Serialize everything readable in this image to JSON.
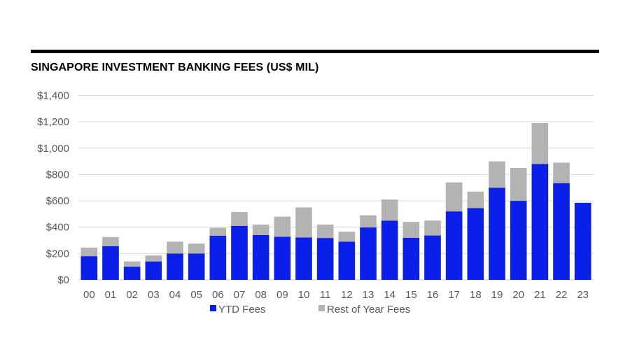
{
  "chart_data": {
    "type": "bar",
    "stacked": true,
    "title": "SINGAPORE INVESTMENT BANKING FEES (US$ MIL)",
    "categories": [
      "00",
      "01",
      "02",
      "03",
      "04",
      "05",
      "06",
      "07",
      "08",
      "09",
      "10",
      "11",
      "12",
      "13",
      "14",
      "15",
      "16",
      "17",
      "18",
      "19",
      "20",
      "21",
      "22",
      "23"
    ],
    "series": [
      {
        "name": "YTD Fees",
        "color": "#0A1FE8",
        "values": [
          180,
          255,
          100,
          140,
          200,
          200,
          335,
          410,
          340,
          328,
          322,
          318,
          290,
          398,
          450,
          320,
          337,
          520,
          545,
          700,
          600,
          880,
          735,
          585
        ]
      },
      {
        "name": "Rest of Year Fees",
        "color": "#B3B3B3",
        "values": [
          65,
          70,
          40,
          45,
          90,
          75,
          60,
          105,
          80,
          152,
          228,
          102,
          75,
          92,
          160,
          120,
          113,
          220,
          125,
          200,
          250,
          310,
          155,
          0
        ]
      }
    ],
    "yticks": [
      "$0",
      "$200",
      "$400",
      "$600",
      "$800",
      "$1,000",
      "$1,200",
      "$1,400"
    ],
    "ylim": [
      0,
      1400
    ],
    "ystep": 200,
    "grid": true,
    "legend": "bottom"
  }
}
